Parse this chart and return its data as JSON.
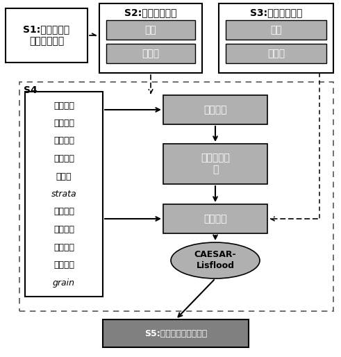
{
  "fig_width": 4.91,
  "fig_height": 5.14,
  "dpi": 100,
  "bg_color": "#ffffff",
  "light_gray": "#b0b0b0",
  "dark_gray": "#808080",
  "s1_text": "S1:确定滑坡失\n稳坡度角阈值",
  "s2_title": "S2:坡角阈值矩阵",
  "s3_title": "S3:追踪索引矩阵",
  "s2_sub1": "滑坡",
  "s2_sub2": "非滑坡",
  "s3_sub1": "滑坡",
  "s3_sub2": "非滑坡",
  "s4_label": "S4",
  "s4_lines": [
    [
      "建立代表",
      true,
      false
    ],
    [
      "地表活动",
      true,
      false
    ],
    [
      "地层系统",
      true,
      false
    ],
    [
      "的四维数",
      true,
      false
    ],
    [
      "组变量",
      true,
      false
    ],
    [
      "strata",
      false,
      true
    ],
    [
      "和代表泥",
      true,
      false
    ],
    [
      "沙粒径组",
      true,
      false
    ],
    [
      "成的三维",
      true,
      false
    ],
    [
      "数组变量",
      true,
      false
    ],
    [
      "grain",
      false,
      true
    ]
  ],
  "bp_text": "坡面过程",
  "ns_text": "泥沙运移过\n程",
  "nszz_text": "泥沙追踪",
  "caesar_text": "CAESAR-\nLisflood",
  "s5_text": "S5:输出（各源区）文件"
}
